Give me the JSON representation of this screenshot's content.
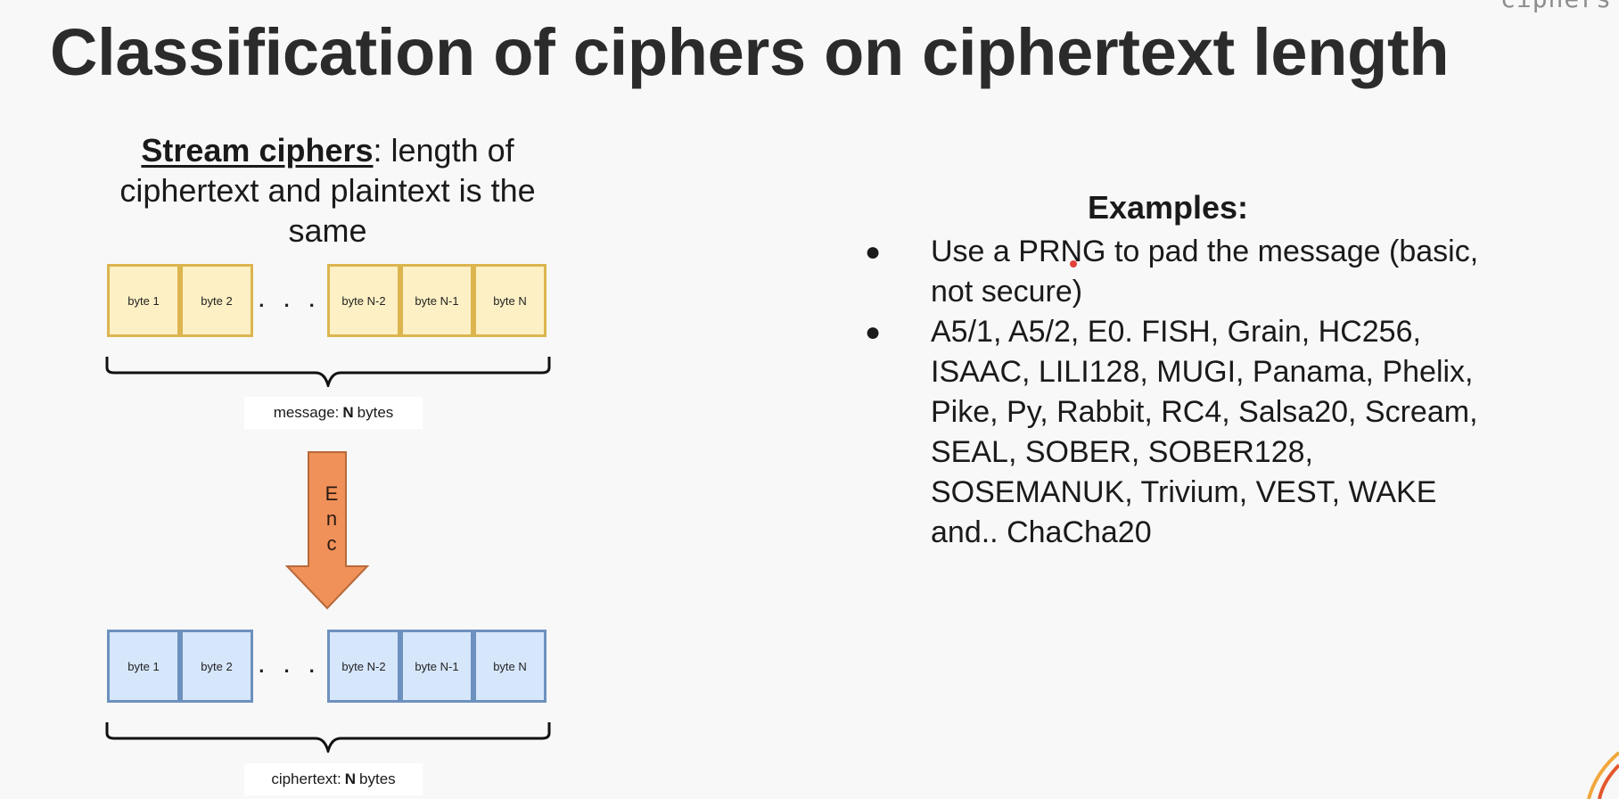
{
  "corner_label": "ciphers",
  "title": "Classification of ciphers on ciphertext length",
  "stream": {
    "term": "Stream ciphers",
    "description": ": length of ciphertext and plaintext is the same"
  },
  "diagram": {
    "plaintext_cells": [
      "byte 1",
      "byte 2",
      "byte  N-2",
      "byte N-1",
      "byte N"
    ],
    "ciphertext_cells": [
      "byte 1",
      "byte 2",
      "byte  N-2",
      "byte N-1",
      "byte N"
    ],
    "ellipsis": ". . .",
    "message_caption": {
      "prefix": "message:",
      "bold": "N",
      "suffix": "bytes"
    },
    "ciphertext_caption": {
      "prefix": "ciphertext:",
      "bold": "N",
      "suffix": "bytes"
    },
    "arrow_letters": [
      "E",
      "n",
      "c"
    ],
    "colors": {
      "plain_fill": "#fdf0c4",
      "plain_border": "#dcb54f",
      "cipher_fill": "#d6e6fb",
      "cipher_border": "#6d91be",
      "arrow_fill": "#f0915a",
      "arrow_border": "#b8693a"
    }
  },
  "examples": {
    "heading": "Examples:",
    "items": [
      "Use a PRNG to pad the message (basic, not secure)",
      "A5/1, A5/2, E0. FISH, Grain, HC256, ISAAC,  LILI128, MUGI, Panama, Phelix, Pike, Py, Rabbit, RC4, Salsa20, Scream, SEAL, SOBER, SOBER128, SOSEMANUK, Trivium, VEST, WAKE and.. ChaCha20"
    ],
    "bullet": "●"
  }
}
